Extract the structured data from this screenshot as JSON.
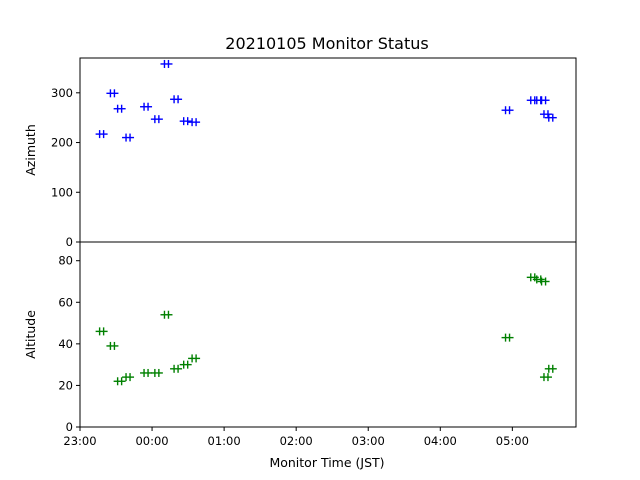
{
  "chart_data": {
    "type": "scatter",
    "title": "20210105 Monitor Status",
    "xlabel": "Monitor Time (JST)",
    "x_ticks": [
      "23:00",
      "00:00",
      "01:00",
      "02:00",
      "03:00",
      "04:00",
      "05:00"
    ],
    "panels": [
      {
        "name": "azimuth",
        "ylabel": "Azimuth",
        "color": "#0000ff",
        "ylim": [
          0,
          370
        ],
        "y_ticks": [
          0,
          100,
          200,
          300
        ],
        "points": [
          {
            "t": "23:18",
            "v": 217
          },
          {
            "t": "23:27",
            "v": 299
          },
          {
            "t": "23:33",
            "v": 268
          },
          {
            "t": "23:40",
            "v": 210
          },
          {
            "t": "23:55",
            "v": 272
          },
          {
            "t": "00:04",
            "v": 247
          },
          {
            "t": "00:12",
            "v": 358
          },
          {
            "t": "00:20",
            "v": 287
          },
          {
            "t": "00:28",
            "v": 243
          },
          {
            "t": "00:35",
            "v": 241
          },
          {
            "t": "04:56",
            "v": 265
          },
          {
            "t": "05:17",
            "v": 285
          },
          {
            "t": "05:22",
            "v": 285
          },
          {
            "t": "05:26",
            "v": 285
          },
          {
            "t": "05:28",
            "v": 257
          },
          {
            "t": "05:32",
            "v": 250
          }
        ]
      },
      {
        "name": "altitude",
        "ylabel": "Altitude",
        "color": "#008000",
        "ylim": [
          0,
          89
        ],
        "y_ticks": [
          0,
          20,
          40,
          60,
          80
        ],
        "points": [
          {
            "t": "23:18",
            "v": 46
          },
          {
            "t": "23:27",
            "v": 39
          },
          {
            "t": "23:33",
            "v": 22
          },
          {
            "t": "23:40",
            "v": 24
          },
          {
            "t": "23:55",
            "v": 26
          },
          {
            "t": "00:04",
            "v": 26
          },
          {
            "t": "00:12",
            "v": 54
          },
          {
            "t": "00:20",
            "v": 28
          },
          {
            "t": "00:28",
            "v": 30
          },
          {
            "t": "00:35",
            "v": 33
          },
          {
            "t": "04:56",
            "v": 43
          },
          {
            "t": "05:17",
            "v": 72
          },
          {
            "t": "05:22",
            "v": 71
          },
          {
            "t": "05:26",
            "v": 70
          },
          {
            "t": "05:28",
            "v": 24
          },
          {
            "t": "05:32",
            "v": 28
          }
        ]
      }
    ]
  }
}
